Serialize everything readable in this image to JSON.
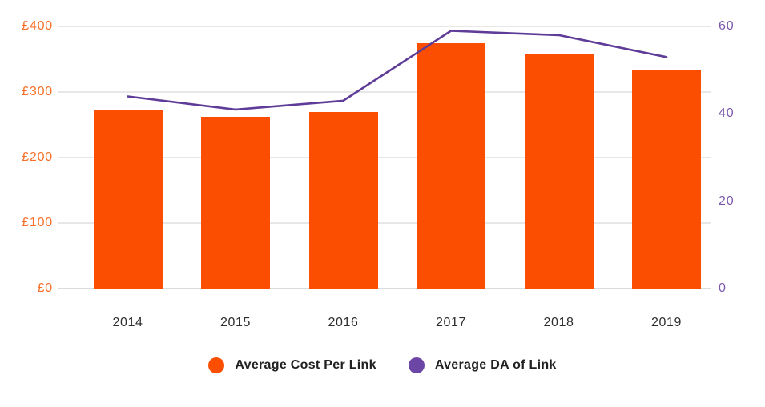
{
  "chart_data": {
    "type": "bar",
    "subtype": "bar-line-combo",
    "title": "",
    "categories": [
      "2014",
      "2015",
      "2016",
      "2017",
      "2018",
      "2019"
    ],
    "series": [
      {
        "name": "Average Cost Per Link",
        "type": "bar",
        "axis": "left",
        "values": [
          273,
          262,
          270,
          374,
          359,
          334
        ]
      },
      {
        "name": "Average DA of Link",
        "type": "line",
        "axis": "right",
        "values": [
          44,
          41,
          43,
          59,
          58,
          53
        ]
      }
    ],
    "left_axis": {
      "tick_labels": [
        "£400",
        "£300",
        "£200",
        "£100",
        "£0"
      ],
      "tick_values": [
        400,
        300,
        200,
        100,
        0
      ],
      "min": 0,
      "max": 400,
      "prefix": "£"
    },
    "right_axis": {
      "tick_labels": [
        "60",
        "40",
        "20",
        "0"
      ],
      "tick_values": [
        60,
        40,
        20,
        0
      ],
      "min": 0,
      "max": 60
    },
    "grid": true,
    "legend_position": "bottom"
  },
  "colors": {
    "bar": "#FC4E00",
    "line": "#5E3C98",
    "legend_dot_bar": "#FC4E00",
    "legend_dot_line": "#6B46A5",
    "left_tick_text": "#F8702A",
    "right_tick_text": "#7A58AC",
    "year_text": "#2E2E2E",
    "legend_text": "#212121",
    "gridline": "#E7E7E7",
    "axis_line": "#DCDCDC",
    "background": "#FFFFFF"
  }
}
